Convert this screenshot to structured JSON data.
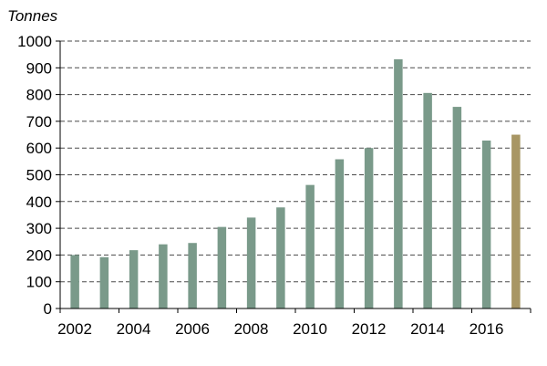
{
  "chart_data": {
    "type": "bar",
    "ylabel": "Tonnes",
    "categories": [
      "2002",
      "2003",
      "2004",
      "2005",
      "2006",
      "2007",
      "2008",
      "2009",
      "2010",
      "2011",
      "2012",
      "2013",
      "2014",
      "2015",
      "2016",
      "2017"
    ],
    "values": [
      200,
      192,
      218,
      240,
      245,
      305,
      340,
      378,
      462,
      558,
      600,
      932,
      806,
      754,
      628,
      650
    ],
    "x_tick_labels": [
      "2002",
      "2004",
      "2006",
      "2008",
      "2010",
      "2012",
      "2014",
      "2016"
    ],
    "y_tick_labels": [
      "0",
      "100",
      "200",
      "300",
      "400",
      "500",
      "600",
      "700",
      "800",
      "900",
      "1000"
    ],
    "ylim": [
      0,
      1000
    ],
    "grid": true,
    "legend": "none",
    "bar_color": "#7a9a8a",
    "highlight_color": "#a89664",
    "highlight_category": "2017"
  }
}
